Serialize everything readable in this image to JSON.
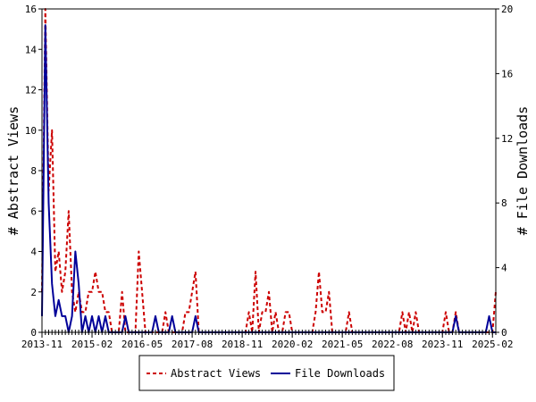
{
  "chart_data": {
    "type": "line",
    "title": "",
    "x": [
      "2013-11",
      "2013-12",
      "2014-01",
      "2014-02",
      "2014-03",
      "2014-04",
      "2014-05",
      "2014-06",
      "2014-07",
      "2014-08",
      "2014-09",
      "2014-10",
      "2014-11",
      "2014-12",
      "2015-01",
      "2015-02",
      "2015-03",
      "2015-04",
      "2015-05",
      "2015-06",
      "2015-07",
      "2015-08",
      "2015-09",
      "2015-10",
      "2015-11",
      "2015-12",
      "2016-01",
      "2016-02",
      "2016-03",
      "2016-04",
      "2016-05",
      "2016-06",
      "2016-07",
      "2016-08",
      "2016-09",
      "2016-10",
      "2016-11",
      "2016-12",
      "2017-01",
      "2017-02",
      "2017-03",
      "2017-04",
      "2017-05",
      "2017-06",
      "2017-07",
      "2017-08",
      "2017-09",
      "2017-10",
      "2017-11",
      "2017-12",
      "2018-01",
      "2018-02",
      "2018-03",
      "2018-04",
      "2018-05",
      "2018-06",
      "2018-07",
      "2018-08",
      "2018-09",
      "2018-10",
      "2018-11",
      "2018-12",
      "2019-01",
      "2019-02",
      "2019-03",
      "2019-04",
      "2019-05",
      "2019-06",
      "2019-07",
      "2019-08",
      "2019-09",
      "2019-10",
      "2019-11",
      "2019-12",
      "2020-01",
      "2020-02",
      "2020-03",
      "2020-04",
      "2020-05",
      "2020-06",
      "2020-07",
      "2020-08",
      "2020-09",
      "2020-10",
      "2020-11",
      "2020-12",
      "2021-01",
      "2021-02",
      "2021-03",
      "2021-04",
      "2021-05",
      "2021-06",
      "2021-07",
      "2021-08",
      "2021-09",
      "2021-10",
      "2021-11",
      "2021-12",
      "2022-01",
      "2022-02",
      "2022-03",
      "2022-04",
      "2022-05",
      "2022-06",
      "2022-07",
      "2022-08",
      "2022-09",
      "2022-10",
      "2022-11",
      "2022-12",
      "2023-01",
      "2023-02",
      "2023-03",
      "2023-04",
      "2023-05",
      "2023-06",
      "2023-07",
      "2023-08",
      "2023-09",
      "2023-10",
      "2023-11",
      "2023-12",
      "2024-01",
      "2024-02",
      "2024-03",
      "2024-04",
      "2024-05",
      "2024-06",
      "2024-07",
      "2024-08",
      "2024-09",
      "2024-10",
      "2024-11",
      "2024-12",
      "2025-01",
      "2025-02",
      "2025-03"
    ],
    "series": [
      {
        "name": "Abstract Views",
        "axis": "left",
        "color": "#cc0000",
        "dash": true,
        "values": [
          2,
          16,
          7,
          10,
          3,
          4,
          2,
          3,
          6,
          2,
          1,
          2,
          1,
          1,
          2,
          2,
          3,
          2,
          2,
          1,
          1,
          0,
          0,
          0,
          2,
          0,
          0,
          0,
          0,
          4,
          2,
          0,
          0,
          0,
          0,
          0,
          0,
          1,
          0,
          0,
          0,
          0,
          0,
          1,
          1,
          2,
          3,
          0,
          0,
          0,
          0,
          0,
          0,
          0,
          0,
          0,
          0,
          0,
          0,
          0,
          0,
          0,
          1,
          0,
          3,
          0,
          1,
          1,
          2,
          0,
          1,
          0,
          0,
          1,
          1,
          0,
          0,
          0,
          0,
          0,
          0,
          0,
          1,
          3,
          1,
          1,
          2,
          0,
          0,
          0,
          0,
          0,
          1,
          0,
          0,
          0,
          0,
          0,
          0,
          0,
          0,
          0,
          0,
          0,
          0,
          0,
          0,
          0,
          1,
          0,
          1,
          0,
          1,
          0,
          0,
          0,
          0,
          0,
          0,
          0,
          0,
          1,
          0,
          0,
          1,
          0,
          0,
          0,
          0,
          0,
          0,
          0,
          0,
          0,
          0,
          0,
          2
        ]
      },
      {
        "name": "File Downloads",
        "axis": "right",
        "color": "#000099",
        "dash": false,
        "values": [
          1,
          19,
          8,
          3,
          1,
          2,
          1,
          1,
          0,
          1,
          5,
          3,
          0,
          1,
          0,
          1,
          0,
          1,
          0,
          1,
          0,
          0,
          0,
          0,
          0,
          1,
          0,
          0,
          0,
          0,
          0,
          0,
          0,
          0,
          1,
          0,
          0,
          0,
          0,
          1,
          0,
          0,
          0,
          0,
          0,
          0,
          1,
          0,
          0,
          0,
          0,
          0,
          0,
          0,
          0,
          0,
          0,
          0,
          0,
          0,
          0,
          0,
          0,
          0,
          0,
          0,
          0,
          0,
          0,
          0,
          0,
          0,
          0,
          0,
          0,
          0,
          0,
          0,
          0,
          0,
          0,
          0,
          0,
          0,
          0,
          0,
          0,
          0,
          0,
          0,
          0,
          0,
          0,
          0,
          0,
          0,
          0,
          0,
          0,
          0,
          0,
          0,
          0,
          0,
          0,
          0,
          0,
          0,
          0,
          0,
          0,
          0,
          0,
          0,
          0,
          0,
          0,
          0,
          0,
          0,
          0,
          0,
          0,
          0,
          1,
          0,
          0,
          0,
          0,
          0,
          0,
          0,
          0,
          0,
          1,
          0,
          0
        ]
      }
    ],
    "y_left": {
      "label": "# Abstract Views",
      "range": [
        0,
        16
      ],
      "ticks": [
        "0",
        "2",
        "4",
        "6",
        "8",
        "10",
        "12",
        "14",
        "16"
      ]
    },
    "y_right": {
      "label": "# File Downloads",
      "range": [
        0,
        20
      ],
      "ticks": [
        "0",
        "4",
        "8",
        "12",
        "16",
        "20"
      ]
    },
    "x_tick_labels": [
      "2013-11",
      "2015-02",
      "2016-05",
      "2017-08",
      "2018-11",
      "2020-02",
      "2021-05",
      "2022-08",
      "2023-11",
      "2025-02"
    ],
    "grid": false,
    "legend": {
      "placement": "bottom-center",
      "entries": [
        "Abstract Views",
        "File Downloads"
      ]
    }
  }
}
